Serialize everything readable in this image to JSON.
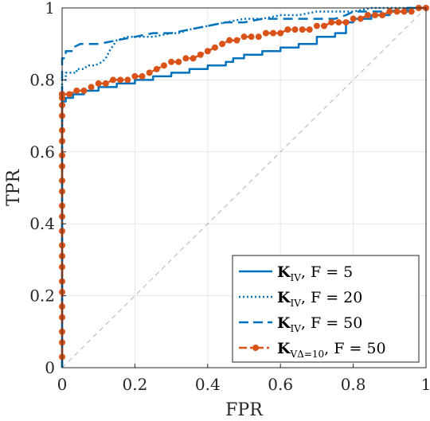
{
  "chart_data": {
    "type": "line",
    "xlabel": "FPR",
    "ylabel": "TPR",
    "xlim": [
      0,
      1
    ],
    "ylim": [
      0,
      1
    ],
    "grid": true,
    "legend_position": "bottom-right",
    "xticks": [
      "0",
      "0.2",
      "0.4",
      "0.6",
      "0.8",
      "1"
    ],
    "yticks": [
      "0",
      "0.2",
      "0.4",
      "0.6",
      "0.8",
      "1"
    ],
    "xtick_values": [
      0,
      0.2,
      0.4,
      0.6,
      0.8,
      1
    ],
    "ytick_values": [
      0,
      0.2,
      0.4,
      0.6,
      0.8,
      1
    ],
    "colors": {
      "blue": "#0072BD",
      "orange": "#D95319",
      "diagonal": "#b3b3b3",
      "grid": "#e6e6e6",
      "axis": "#262626"
    },
    "series": [
      {
        "name": "K_{I_V}, F = 5",
        "legend": {
          "bold": "K",
          "sub": "IV",
          "rest": ", F = 5"
        },
        "color": "#0072BD",
        "style": "solid",
        "x": [
          0,
          0,
          0.01,
          0.01,
          0.03,
          0.03,
          0.06,
          0.06,
          0.1,
          0.1,
          0.15,
          0.15,
          0.2,
          0.2,
          0.25,
          0.25,
          0.3,
          0.3,
          0.35,
          0.35,
          0.4,
          0.4,
          0.45,
          0.45,
          0.47,
          0.47,
          0.5,
          0.5,
          0.55,
          0.55,
          0.6,
          0.6,
          0.65,
          0.65,
          0.7,
          0.7,
          0.75,
          0.75,
          0.78,
          0.78,
          0.8,
          0.8,
          0.85,
          0.85,
          0.9,
          0.9,
          0.95,
          0.95,
          1
        ],
        "y": [
          0,
          0.74,
          0.74,
          0.75,
          0.75,
          0.76,
          0.76,
          0.77,
          0.77,
          0.78,
          0.78,
          0.79,
          0.79,
          0.8,
          0.8,
          0.81,
          0.81,
          0.82,
          0.82,
          0.83,
          0.83,
          0.84,
          0.84,
          0.85,
          0.85,
          0.86,
          0.86,
          0.87,
          0.87,
          0.88,
          0.88,
          0.89,
          0.89,
          0.9,
          0.9,
          0.92,
          0.92,
          0.93,
          0.93,
          0.96,
          0.96,
          0.97,
          0.97,
          0.98,
          0.98,
          0.99,
          0.99,
          1,
          1
        ]
      },
      {
        "name": "K_{I_V}, F = 20",
        "legend": {
          "bold": "K",
          "sub": "IV",
          "rest": ", F = 20"
        },
        "color": "#0072BD",
        "style": "dotted",
        "x": [
          0,
          0,
          0.01,
          0.01,
          0.04,
          0.04,
          0.06,
          0.07,
          0.09,
          0.11,
          0.12,
          0.13,
          0.15,
          0.18,
          0.2,
          0.25,
          0.3,
          0.32,
          0.35,
          0.4,
          0.45,
          0.5,
          0.55,
          0.6,
          0.62,
          0.65,
          0.7,
          0.8,
          0.85,
          0.9,
          0.95,
          1
        ],
        "y": [
          0,
          0.8,
          0.8,
          0.82,
          0.82,
          0.83,
          0.83,
          0.84,
          0.84,
          0.85,
          0.86,
          0.88,
          0.91,
          0.92,
          0.92,
          0.92,
          0.93,
          0.93,
          0.94,
          0.95,
          0.96,
          0.97,
          0.97,
          0.98,
          0.98,
          0.98,
          0.99,
          0.99,
          1,
          1,
          1,
          1
        ]
      },
      {
        "name": "K_{I_V}, F = 50",
        "legend": {
          "bold": "K",
          "sub": "IV",
          "rest": ", F = 50"
        },
        "color": "#0072BD",
        "style": "dashed",
        "x": [
          0,
          0,
          0.01,
          0.01,
          0.03,
          0.03,
          0.05,
          0.1,
          0.15,
          0.2,
          0.25,
          0.3,
          0.35,
          0.4,
          0.45,
          0.5,
          0.55,
          0.6,
          0.65,
          0.7,
          0.75,
          0.78,
          0.8,
          0.85,
          0.9,
          0.95,
          1
        ],
        "y": [
          0,
          0.86,
          0.86,
          0.88,
          0.88,
          0.89,
          0.9,
          0.9,
          0.91,
          0.92,
          0.93,
          0.93,
          0.94,
          0.95,
          0.96,
          0.96,
          0.97,
          0.97,
          0.97,
          0.97,
          0.97,
          0.98,
          0.99,
          0.99,
          0.99,
          1,
          1
        ]
      },
      {
        "name": "K_{VΔ=10}, F = 50",
        "legend": {
          "bold": "K",
          "sub": "VΔ=10",
          "rest": ", F = 50"
        },
        "color": "#D95319",
        "style": "dash-dot-marker",
        "x": [
          0,
          0,
          0,
          0,
          0,
          0,
          0,
          0,
          0,
          0,
          0,
          0,
          0,
          0,
          0,
          0,
          0,
          0,
          0,
          0,
          0,
          0,
          0,
          0,
          0,
          0.02,
          0.04,
          0.06,
          0.08,
          0.1,
          0.12,
          0.14,
          0.16,
          0.18,
          0.2,
          0.22,
          0.24,
          0.26,
          0.28,
          0.3,
          0.32,
          0.34,
          0.36,
          0.38,
          0.4,
          0.42,
          0.44,
          0.46,
          0.48,
          0.5,
          0.52,
          0.54,
          0.56,
          0.58,
          0.6,
          0.62,
          0.64,
          0.66,
          0.68,
          0.7,
          0.72,
          0.74,
          0.76,
          0.78,
          0.8,
          0.82,
          0.84,
          0.86,
          0.88,
          0.9,
          0.92,
          0.94,
          0.96,
          0.98,
          1
        ],
        "y": [
          0.03,
          0.07,
          0.1,
          0.14,
          0.17,
          0.21,
          0.24,
          0.28,
          0.31,
          0.34,
          0.38,
          0.42,
          0.45,
          0.49,
          0.52,
          0.56,
          0.59,
          0.63,
          0.66,
          0.7,
          0.73,
          0.75,
          0.76,
          0.76,
          0.76,
          0.76,
          0.77,
          0.77,
          0.78,
          0.79,
          0.79,
          0.8,
          0.8,
          0.8,
          0.81,
          0.81,
          0.82,
          0.83,
          0.84,
          0.85,
          0.85,
          0.86,
          0.86,
          0.87,
          0.88,
          0.89,
          0.9,
          0.91,
          0.91,
          0.92,
          0.92,
          0.92,
          0.93,
          0.93,
          0.93,
          0.94,
          0.94,
          0.94,
          0.94,
          0.95,
          0.95,
          0.96,
          0.96,
          0.96,
          0.97,
          0.97,
          0.98,
          0.98,
          0.98,
          0.99,
          0.99,
          0.99,
          0.99,
          1,
          1
        ]
      }
    ],
    "reference_line": {
      "style": "dashed",
      "x": [
        0,
        1
      ],
      "y": [
        0,
        1
      ]
    }
  }
}
